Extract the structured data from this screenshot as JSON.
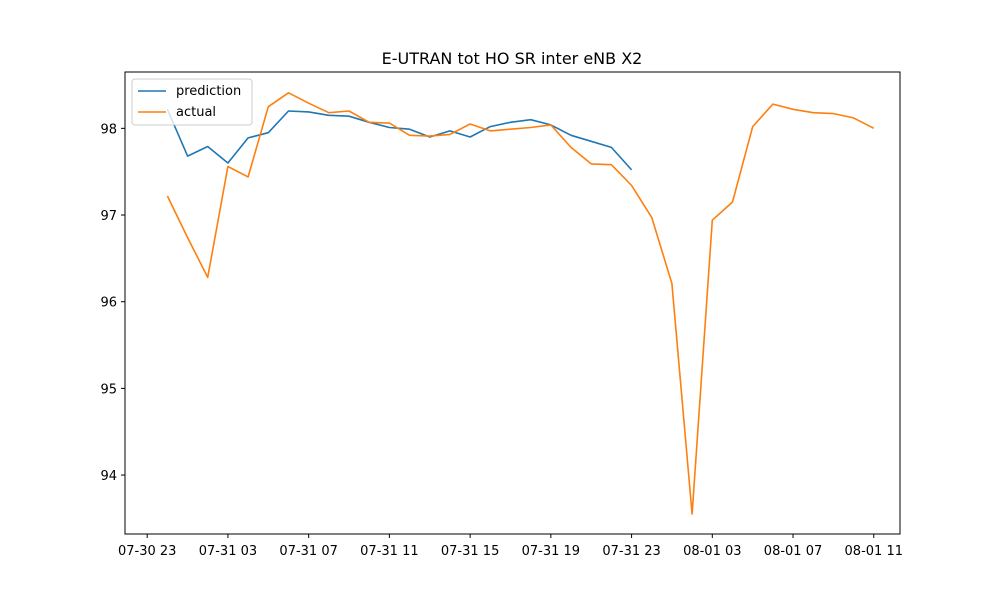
{
  "chart_data": {
    "type": "line",
    "title": "E-UTRAN tot HO SR inter eNB X2",
    "xlabel": "",
    "ylabel": "",
    "x_ticks": [
      "07-30 23",
      "07-31 03",
      "07-31 07",
      "07-31 11",
      "07-31 15",
      "07-31 19",
      "07-31 23",
      "08-01 03",
      "08-01 07",
      "08-01 11"
    ],
    "y_ticks": [
      "94",
      "95",
      "96",
      "97",
      "98"
    ],
    "xlim_hours": [
      -1.1,
      37.3
    ],
    "ylim": [
      93.32,
      98.65
    ],
    "grid": false,
    "legend": "top-left",
    "series": [
      {
        "name": "prediction",
        "color": "#1f77b4",
        "x": [
          1,
          2,
          3,
          4,
          5,
          6,
          7,
          8,
          9,
          10,
          11,
          12,
          13,
          14,
          15,
          16,
          17,
          18,
          19,
          20,
          21,
          22,
          23,
          24
        ],
        "values": [
          98.22,
          97.68,
          97.79,
          97.6,
          97.89,
          97.95,
          98.2,
          98.19,
          98.15,
          98.14,
          98.07,
          98.01,
          97.99,
          97.9,
          97.97,
          97.9,
          98.02,
          98.07,
          98.1,
          98.04,
          97.92,
          97.85,
          97.78,
          97.52
        ]
      },
      {
        "name": "actual",
        "color": "#ff7f0e",
        "x": [
          1,
          2,
          3,
          4,
          5,
          6,
          7,
          8,
          9,
          10,
          11,
          12,
          13,
          14,
          15,
          16,
          17,
          18,
          19,
          20,
          21,
          22,
          23,
          24,
          25,
          26,
          27,
          28,
          29,
          30,
          31,
          32,
          33,
          34,
          35,
          36
        ],
        "values": [
          97.22,
          96.74,
          96.28,
          97.56,
          97.44,
          98.25,
          98.41,
          98.29,
          98.18,
          98.2,
          98.07,
          98.06,
          97.92,
          97.91,
          97.93,
          98.05,
          97.97,
          97.99,
          98.01,
          98.04,
          97.78,
          97.59,
          97.58,
          97.34,
          96.97,
          96.21,
          93.55,
          96.94,
          97.15,
          98.02,
          98.28,
          98.22,
          98.18,
          98.17,
          98.12,
          98.0
        ]
      }
    ]
  }
}
